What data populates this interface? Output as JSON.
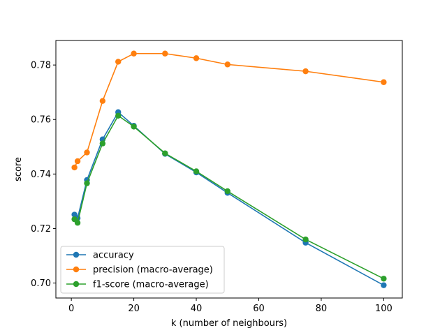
{
  "chart_data": {
    "type": "line",
    "title": "",
    "xlabel": "k (number of neighbours)",
    "ylabel": "score",
    "xlim": [
      -4.95,
      105.95
    ],
    "ylim": [
      0.6945,
      0.789
    ],
    "xticks": [
      0,
      20,
      40,
      60,
      80,
      100
    ],
    "xtick_labels": [
      "0",
      "20",
      "40",
      "60",
      "80",
      "100"
    ],
    "yticks": [
      0.7,
      0.72,
      0.74,
      0.76,
      0.78
    ],
    "ytick_labels": [
      "0.70",
      "0.72",
      "0.74",
      "0.76",
      "0.78"
    ],
    "grid": false,
    "legend_position": "lower-left",
    "x": [
      1,
      2,
      5,
      10,
      15,
      20,
      30,
      40,
      50,
      75,
      100
    ],
    "series": [
      {
        "name": "accuracy",
        "color": "#1f77b4",
        "values": [
          0.7251,
          0.7238,
          0.7378,
          0.7527,
          0.7627,
          0.7577,
          0.7474,
          0.7406,
          0.7331,
          0.7148,
          0.6992
        ]
      },
      {
        "name": "precision (macro-average)",
        "color": "#ff7f0e",
        "values": [
          0.7424,
          0.7447,
          0.7479,
          0.7668,
          0.7812,
          0.7842,
          0.7842,
          0.7825,
          0.7802,
          0.7777,
          0.7737
        ]
      },
      {
        "name": "f1-score (macro-average)",
        "color": "#2ca02c",
        "values": [
          0.7234,
          0.7221,
          0.7366,
          0.7512,
          0.7614,
          0.7574,
          0.7476,
          0.741,
          0.7337,
          0.716,
          0.7016
        ]
      }
    ]
  }
}
